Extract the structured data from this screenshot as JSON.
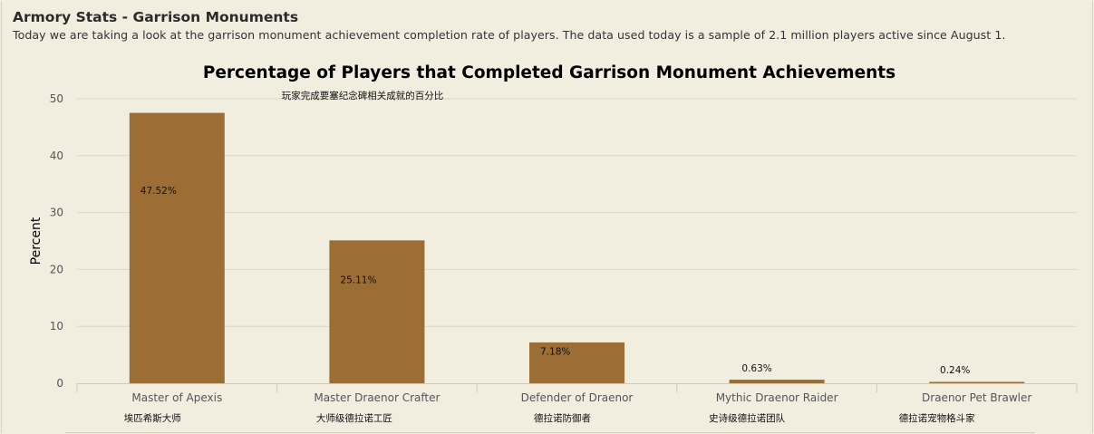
{
  "header": {
    "title": "Armory Stats - Garrison Monuments",
    "description": "Today we are taking a look at the garrison monument achievement completion rate of players. The data used today is a sample of 2.1 million players active since August 1."
  },
  "chart_data": {
    "type": "bar",
    "title": "Percentage of Players that Completed Garrison Monument Achievements",
    "subtitle": "玩家完成要塞纪念碑相关成就的百分比",
    "xlabel": "",
    "ylabel": "Percent",
    "categories": [
      "Master of Apexis",
      "Master Draenor Crafter",
      "Defender of Draenor",
      "Mythic Draenor Raider",
      "Draenor Pet Brawler"
    ],
    "categories_zh": [
      "埃匹希斯大师",
      "大师级德拉诺工匠",
      "德拉诺防御者",
      "史诗级德拉诺团队",
      "德拉诺宠物格斗家"
    ],
    "values": [
      47.52,
      25.11,
      7.18,
      0.63,
      0.24
    ],
    "data_labels": [
      "47.52%",
      "25.11%",
      "7.18%",
      "0.63%",
      "0.24%"
    ],
    "ylim": [
      0,
      50
    ],
    "yticks": [
      "0",
      "10",
      "20",
      "30",
      "40",
      "50"
    ],
    "grid": true,
    "legend": "none",
    "colors": {
      "bar": "#9c6d35",
      "grid": "#dcd8c8",
      "axis": "#c4cad4"
    }
  }
}
